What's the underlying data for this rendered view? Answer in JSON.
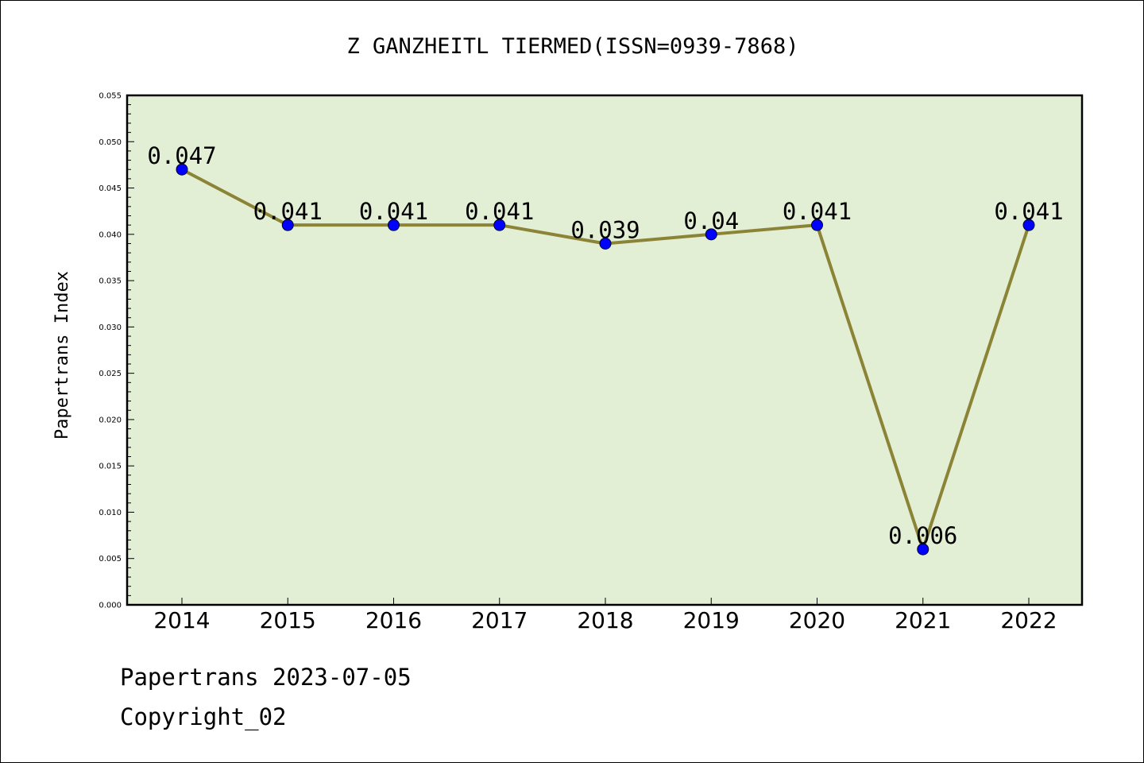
{
  "chart_data": {
    "type": "line",
    "title": "Z GANZHEITL TIERMED(ISSN=0939-7868)",
    "xlabel": "",
    "ylabel": "Papertrans Index",
    "categories": [
      "2014",
      "2015",
      "2016",
      "2017",
      "2018",
      "2019",
      "2020",
      "2021",
      "2022"
    ],
    "values": [
      0.047,
      0.041,
      0.041,
      0.041,
      0.039,
      0.04,
      0.041,
      0.006,
      0.041
    ],
    "data_labels": [
      "0.047",
      "0.041",
      "0.041",
      "0.041",
      "0.039",
      "0.04",
      "0.041",
      "0.006",
      "0.041"
    ],
    "ylim": [
      0,
      0.055
    ],
    "yticks": [
      "0.000",
      "0.005",
      "0.010",
      "0.015",
      "0.020",
      "0.025",
      "0.030",
      "0.035",
      "0.040",
      "0.045",
      "0.050",
      "0.055"
    ],
    "grid": false,
    "legend": "none",
    "colors": {
      "plot_background": "#e2efd4",
      "line": "#8b8436",
      "marker": "#0000ff"
    }
  },
  "footer": {
    "line1": "Papertrans 2023-07-05",
    "line2": "Copyright_02"
  }
}
